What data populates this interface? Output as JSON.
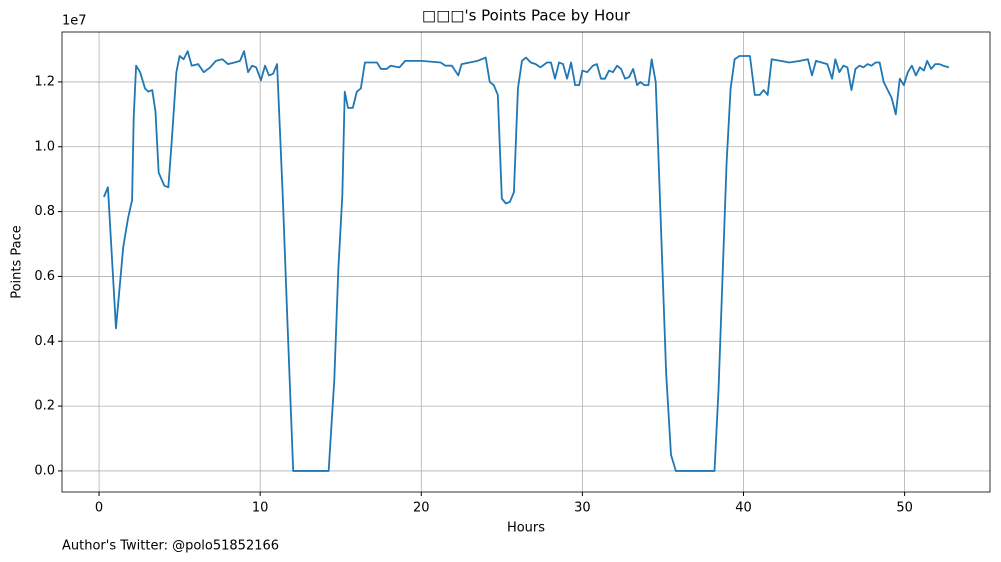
{
  "chart_data": {
    "type": "line",
    "title": "□□□'s Points Pace by Hour",
    "xlabel": "Hours",
    "ylabel": "Points Pace",
    "y_offset_label": "1e7",
    "footnote": "Author's Twitter: @polo51852166",
    "grid": true,
    "color": "#1f77b4",
    "xlim": [
      -2.3,
      55.3
    ],
    "xticks": [
      0,
      10,
      20,
      30,
      40,
      50
    ],
    "ylim": [
      -650000,
      13540000
    ],
    "yticks": [
      {
        "value": 0,
        "label": "0.0"
      },
      {
        "value": 2000000,
        "label": "0.2"
      },
      {
        "value": 4000000,
        "label": "0.4"
      },
      {
        "value": 6000000,
        "label": "0.6"
      },
      {
        "value": 8000000,
        "label": "0.8"
      },
      {
        "value": 10000000,
        "label": "1.0"
      },
      {
        "value": 12000000,
        "label": "1.2"
      }
    ],
    "x": [
      0.3,
      0.55,
      1.05,
      1.5,
      1.8,
      2.05,
      2.15,
      2.3,
      2.55,
      2.85,
      3.05,
      3.3,
      3.5,
      3.7,
      4.05,
      4.3,
      4.5,
      4.8,
      5.0,
      5.25,
      5.5,
      5.75,
      6.15,
      6.5,
      6.9,
      7.25,
      7.65,
      8.0,
      8.4,
      8.75,
      9.0,
      9.25,
      9.5,
      9.75,
      10.05,
      10.3,
      10.55,
      10.8,
      11.05,
      11.4,
      11.7,
      12.05,
      14.25,
      14.6,
      14.85,
      15.1,
      15.25,
      15.45,
      15.75,
      16.0,
      16.25,
      16.5,
      17.25,
      17.5,
      17.85,
      18.1,
      18.65,
      19.0,
      19.5,
      20.0,
      21.2,
      21.5,
      21.9,
      22.3,
      22.5,
      23.0,
      23.5,
      24.0,
      24.25,
      24.5,
      24.75,
      25.0,
      25.25,
      25.5,
      25.75,
      26.0,
      26.25,
      26.5,
      26.8,
      27.1,
      27.4,
      27.8,
      28.05,
      28.3,
      28.55,
      28.8,
      29.05,
      29.3,
      29.55,
      29.8,
      30.0,
      30.3,
      30.65,
      30.9,
      31.15,
      31.4,
      31.65,
      31.9,
      32.15,
      32.4,
      32.65,
      32.9,
      33.15,
      33.4,
      33.6,
      33.85,
      34.1,
      34.3,
      34.55,
      34.7,
      35.2,
      35.5,
      35.8,
      38.2,
      38.45,
      38.7,
      38.95,
      39.2,
      39.45,
      39.75,
      40.05,
      40.4,
      40.7,
      41.0,
      41.25,
      41.5,
      41.75,
      42.85,
      43.5,
      44.0,
      44.25,
      44.5,
      45.2,
      45.5,
      45.7,
      45.95,
      46.2,
      46.45,
      46.7,
      46.95,
      47.2,
      47.45,
      47.7,
      47.95,
      48.2,
      48.45,
      48.7,
      48.95,
      49.2,
      49.45,
      49.7,
      49.95,
      50.2,
      50.45,
      50.7,
      50.95,
      51.2,
      51.4,
      51.65,
      51.9,
      52.15,
      52.4,
      52.75
    ],
    "values": [
      8450000,
      8750000,
      4400000,
      6900000,
      7800000,
      8350000,
      10900000,
      12500000,
      12300000,
      11800000,
      11700000,
      11750000,
      11100000,
      9200000,
      8800000,
      8750000,
      10100000,
      12300000,
      12800000,
      12700000,
      12950000,
      12500000,
      12550000,
      12300000,
      12450000,
      12650000,
      12700000,
      12550000,
      12600000,
      12650000,
      12950000,
      12300000,
      12500000,
      12450000,
      12050000,
      12500000,
      12200000,
      12250000,
      12550000,
      8500000,
      4500000,
      0,
      0,
      2800000,
      6200000,
      8500000,
      11700000,
      11200000,
      11200000,
      11700000,
      11800000,
      12600000,
      12600000,
      12400000,
      12400000,
      12500000,
      12450000,
      12650000,
      12650000,
      12650000,
      12600000,
      12500000,
      12500000,
      12200000,
      12550000,
      12600000,
      12650000,
      12750000,
      12000000,
      11900000,
      11600000,
      8400000,
      8250000,
      8300000,
      8600000,
      11800000,
      12650000,
      12750000,
      12600000,
      12550000,
      12450000,
      12600000,
      12600000,
      12100000,
      12600000,
      12550000,
      12100000,
      12600000,
      11900000,
      11900000,
      12350000,
      12300000,
      12500000,
      12550000,
      12100000,
      12100000,
      12350000,
      12300000,
      12500000,
      12400000,
      12100000,
      12150000,
      12400000,
      11900000,
      12000000,
      11900000,
      11900000,
      12700000,
      12000000,
      10000000,
      3000000,
      500000,
      0,
      0,
      2500000,
      6000000,
      9500000,
      11800000,
      12700000,
      12800000,
      12800000,
      12800000,
      11600000,
      11600000,
      11750000,
      11600000,
      12700000,
      12600000,
      12650000,
      12700000,
      12200000,
      12650000,
      12550000,
      12100000,
      12700000,
      12300000,
      12500000,
      12450000,
      11750000,
      12400000,
      12500000,
      12450000,
      12550000,
      12500000,
      12600000,
      12600000,
      12000000,
      11750000,
      11500000,
      11000000,
      12100000,
      11900000,
      12300000,
      12500000,
      12200000,
      12450000,
      12350000,
      12650000,
      12400000,
      12550000,
      12550000,
      12500000,
      12450000
    ]
  }
}
